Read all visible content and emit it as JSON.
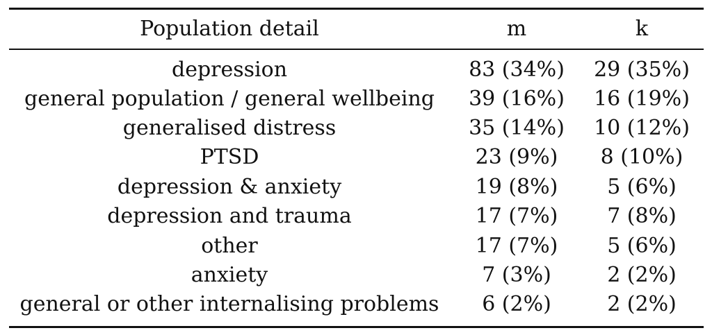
{
  "table": {
    "headers": {
      "detail": "Population detail",
      "m": "m",
      "k": "k"
    },
    "rows": [
      {
        "detail": "depression",
        "m": "83 (34%)",
        "k": "29 (35%)"
      },
      {
        "detail": "general population / general wellbeing",
        "m": "39 (16%)",
        "k": "16 (19%)"
      },
      {
        "detail": "generalised distress",
        "m": "35 (14%)",
        "k": "10 (12%)"
      },
      {
        "detail": "PTSD",
        "m": "23 (9%)",
        "k": "8 (10%)"
      },
      {
        "detail": "depression & anxiety",
        "m": "19 (8%)",
        "k": "5 (6%)"
      },
      {
        "detail": "depression and trauma",
        "m": "17 (7%)",
        "k": "7 (8%)"
      },
      {
        "detail": "other",
        "m": "17 (7%)",
        "k": "5 (6%)"
      },
      {
        "detail": "anxiety",
        "m": "7 (3%)",
        "k": "2 (2%)"
      },
      {
        "detail": "general or other internalising problems",
        "m": "6 (2%)",
        "k": "2 (2%)"
      }
    ]
  }
}
